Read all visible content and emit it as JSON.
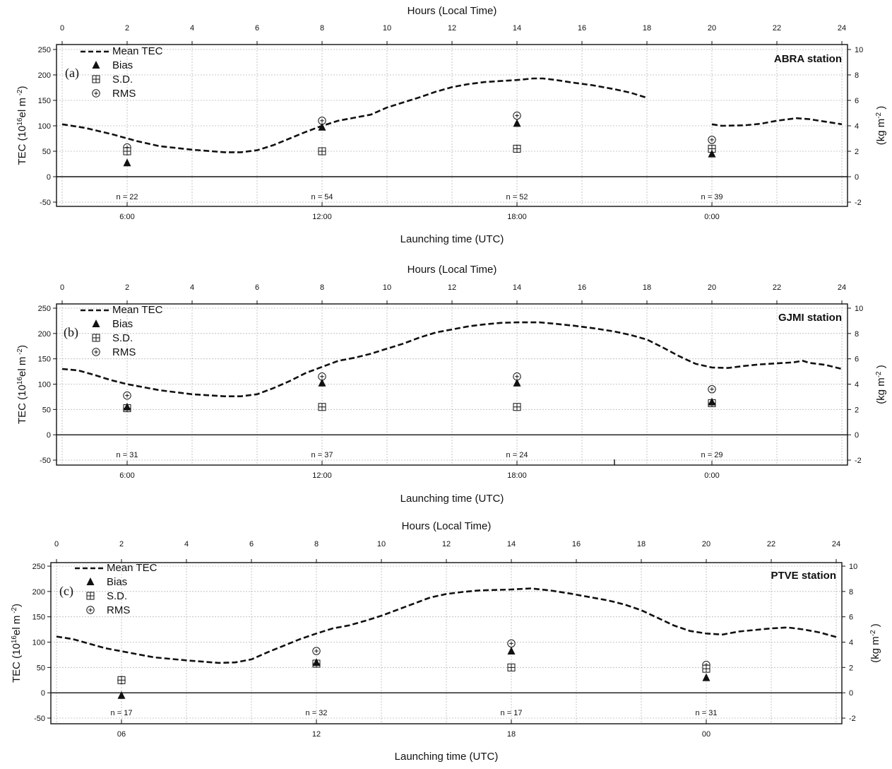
{
  "legend": {
    "mean_tec": "Mean TEC",
    "bias": "Bias",
    "sd": "S.D.",
    "rms": "RMS"
  },
  "axes": {
    "top_title": "Hours (Local Time)",
    "bottom_title": "Launching time (UTC)",
    "left_title": "TEC (10^16 el m^-2)",
    "right_title": "(kg m^-2)",
    "top_ticks": [
      "0",
      "2",
      "4",
      "6",
      "8",
      "10",
      "12",
      "14",
      "16",
      "18",
      "20",
      "22",
      "24"
    ],
    "left_ticks": [
      "-50",
      "0",
      "50",
      "100",
      "150",
      "200",
      "250"
    ],
    "right_ticks": [
      "-2",
      "0",
      "2",
      "4",
      "6",
      "8",
      "10"
    ]
  },
  "chart_data": [
    {
      "type": "line",
      "panel": "(a)",
      "station": "ABRA station",
      "xlabel_top": "Hours (Local Time)",
      "xlabel_bottom": "Launching time (UTC)",
      "ylabel_left": "TEC (10^16 el m^-2)",
      "ylabel_right": "(kg m^-2)",
      "xlim": [
        0,
        24
      ],
      "ylim_left": [
        -50,
        250
      ],
      "ylim_right": [
        -2,
        10
      ],
      "grid": true,
      "legend_position": "top-left",
      "bottom_ticks": [
        {
          "x": 2,
          "label": "6:00"
        },
        {
          "x": 8,
          "label": "12:00"
        },
        {
          "x": 14,
          "label": "18:00"
        },
        {
          "x": 20,
          "label": "0:00"
        }
      ],
      "mean_tec": [
        {
          "segment": [
            [
              0,
              103
            ],
            [
              0.7,
              96
            ],
            [
              1.5,
              84
            ],
            [
              2.3,
              70
            ],
            [
              3,
              60
            ],
            [
              4,
              53
            ],
            [
              5,
              48
            ],
            [
              5.5,
              48
            ],
            [
              6,
              52
            ],
            [
              6.5,
              62
            ],
            [
              7,
              75
            ],
            [
              7.5,
              88
            ],
            [
              8,
              100
            ],
            [
              8.5,
              110
            ],
            [
              9,
              116
            ],
            [
              9.5,
              122
            ],
            [
              10,
              136
            ],
            [
              10.5,
              146
            ],
            [
              11,
              156
            ],
            [
              11.5,
              167
            ],
            [
              12,
              176
            ],
            [
              12.5,
              182
            ],
            [
              13,
              186
            ],
            [
              13.5,
              188
            ],
            [
              14,
              190
            ],
            [
              14.5,
              193
            ],
            [
              14.8,
              193
            ],
            [
              15.2,
              190
            ],
            [
              15.7,
              185
            ],
            [
              16.3,
              180
            ],
            [
              17,
              172
            ],
            [
              17.5,
              165
            ],
            [
              18,
              155
            ]
          ]
        },
        {
          "segment": [
            [
              20,
              103
            ],
            [
              20.3,
              100
            ],
            [
              21,
              101
            ],
            [
              21.5,
              104
            ],
            [
              22,
              110
            ],
            [
              22.6,
              115
            ],
            [
              23,
              113
            ],
            [
              23.5,
              108
            ],
            [
              24,
              103
            ]
          ]
        }
      ],
      "points": [
        {
          "x": 2,
          "n": "n = 22",
          "bias": 1.1,
          "sd": 2.0,
          "rms": 2.3
        },
        {
          "x": 8,
          "n": "n = 54",
          "bias": 3.9,
          "sd": 2.0,
          "rms": 4.4
        },
        {
          "x": 14,
          "n": "n = 52",
          "bias": 4.2,
          "sd": 2.2,
          "rms": 4.8
        },
        {
          "x": 20,
          "n": "n = 39",
          "bias": 1.8,
          "sd": 2.2,
          "rms": 2.9
        }
      ]
    },
    {
      "type": "line",
      "panel": "(b)",
      "station": "GJMI station",
      "xlabel_top": "Hours (Local Time)",
      "xlabel_bottom": "Launching time (UTC)",
      "ylabel_left": "TEC (10^16 el m^-2)",
      "ylabel_right": "(kg m^-2)",
      "xlim": [
        0,
        24
      ],
      "ylim_left": [
        -50,
        250
      ],
      "ylim_right": [
        -2,
        10
      ],
      "grid": true,
      "legend_position": "top-left",
      "bottom_ticks": [
        {
          "x": 2,
          "label": "6:00"
        },
        {
          "x": 8,
          "label": "12:00"
        },
        {
          "x": 14,
          "label": "18:00"
        },
        {
          "x": 20,
          "label": "0:00"
        }
      ],
      "mean_tec": [
        {
          "segment": [
            [
              0,
              130
            ],
            [
              0.5,
              127
            ],
            [
              1,
              118
            ],
            [
              1.5,
              108
            ],
            [
              2,
              100
            ],
            [
              3,
              88
            ],
            [
              4,
              80
            ],
            [
              5,
              76
            ],
            [
              5.5,
              76
            ],
            [
              6,
              80
            ],
            [
              6.5,
              92
            ],
            [
              7,
              106
            ],
            [
              7.5,
              122
            ],
            [
              8,
              134
            ],
            [
              8.5,
              146
            ],
            [
              9,
              152
            ],
            [
              9.5,
              160
            ],
            [
              10,
              170
            ],
            [
              10.5,
              180
            ],
            [
              11,
              192
            ],
            [
              11.5,
              202
            ],
            [
              12,
              208
            ],
            [
              12.5,
              214
            ],
            [
              13,
              218
            ],
            [
              13.5,
              221
            ],
            [
              14,
              222
            ],
            [
              14.7,
              222
            ],
            [
              15.2,
              219
            ],
            [
              15.8,
              215
            ],
            [
              16.4,
              210
            ],
            [
              17,
              204
            ],
            [
              17.5,
              197
            ],
            [
              18,
              188
            ],
            [
              18.5,
              172
            ],
            [
              19,
              155
            ],
            [
              19.5,
              140
            ],
            [
              20,
              133
            ],
            [
              20.5,
              132
            ],
            [
              21,
              136
            ],
            [
              21.5,
              139
            ],
            [
              22,
              141
            ],
            [
              22.5,
              143
            ],
            [
              22.8,
              146
            ],
            [
              23,
              142
            ],
            [
              23.5,
              138
            ],
            [
              24,
              130
            ]
          ]
        }
      ],
      "points": [
        {
          "x": 2,
          "n": "n = 31",
          "bias": 2.2,
          "sd": 2.1,
          "rms": 3.1
        },
        {
          "x": 8,
          "n": "n = 37",
          "bias": 4.1,
          "sd": 2.2,
          "rms": 4.6
        },
        {
          "x": 14,
          "n": "n = 24",
          "bias": 4.1,
          "sd": 2.2,
          "rms": 4.6
        },
        {
          "x": 20,
          "n": "n = 29",
          "bias": 2.6,
          "sd": 2.5,
          "rms": 3.6
        }
      ]
    },
    {
      "type": "line",
      "panel": "(c)",
      "station": "PTVE station",
      "xlabel_top": "Hours (Local Time)",
      "xlabel_bottom": "Launching time (UTC)",
      "ylabel_left": "TEC (10^16 el m^-2)",
      "ylabel_right": "(kg m^-2)",
      "xlim": [
        0,
        24
      ],
      "ylim_left": [
        -50,
        250
      ],
      "ylim_right": [
        -2,
        10
      ],
      "grid": true,
      "legend_position": "top-left",
      "bottom_ticks": [
        {
          "x": 2,
          "label": "06"
        },
        {
          "x": 8,
          "label": "12"
        },
        {
          "x": 14,
          "label": "18"
        },
        {
          "x": 20,
          "label": "00"
        }
      ],
      "mean_tec": [
        {
          "segment": [
            [
              0,
              111
            ],
            [
              0.5,
              106
            ],
            [
              1,
              97
            ],
            [
              1.5,
              88
            ],
            [
              2,
              82
            ],
            [
              3,
              70
            ],
            [
              4,
              64
            ],
            [
              5,
              59
            ],
            [
              5.5,
              60
            ],
            [
              6,
              66
            ],
            [
              6.5,
              80
            ],
            [
              7,
              93
            ],
            [
              7.5,
              106
            ],
            [
              8,
              117
            ],
            [
              8.5,
              127
            ],
            [
              9,
              133
            ],
            [
              9.5,
              142
            ],
            [
              10,
              152
            ],
            [
              10.5,
              164
            ],
            [
              11,
              176
            ],
            [
              11.5,
              188
            ],
            [
              12,
              195
            ],
            [
              12.5,
              199
            ],
            [
              13,
              202
            ],
            [
              13.5,
              203
            ],
            [
              14,
              204
            ],
            [
              14.6,
              206
            ],
            [
              15.2,
              202
            ],
            [
              15.8,
              196
            ],
            [
              16.4,
              189
            ],
            [
              17,
              182
            ],
            [
              17.5,
              174
            ],
            [
              18,
              163
            ],
            [
              18.5,
              148
            ],
            [
              19,
              133
            ],
            [
              19.5,
              122
            ],
            [
              20,
              117
            ],
            [
              20.5,
              115
            ],
            [
              21,
              121
            ],
            [
              21.5,
              124
            ],
            [
              22,
              127
            ],
            [
              22.5,
              129
            ],
            [
              23,
              125
            ],
            [
              23.5,
              119
            ],
            [
              24,
              110
            ]
          ]
        }
      ],
      "points": [
        {
          "x": 2,
          "n": "n = 17",
          "bias": -0.2,
          "sd": 1.0,
          "rms": 1.0
        },
        {
          "x": 8,
          "n": "n = 32",
          "bias": 2.4,
          "sd": 2.3,
          "rms": 3.3
        },
        {
          "x": 14,
          "n": "n = 17",
          "bias": 3.3,
          "sd": 2.0,
          "rms": 3.9
        },
        {
          "x": 20,
          "n": "n = 31",
          "bias": 1.2,
          "sd": 1.9,
          "rms": 2.2
        }
      ]
    }
  ]
}
